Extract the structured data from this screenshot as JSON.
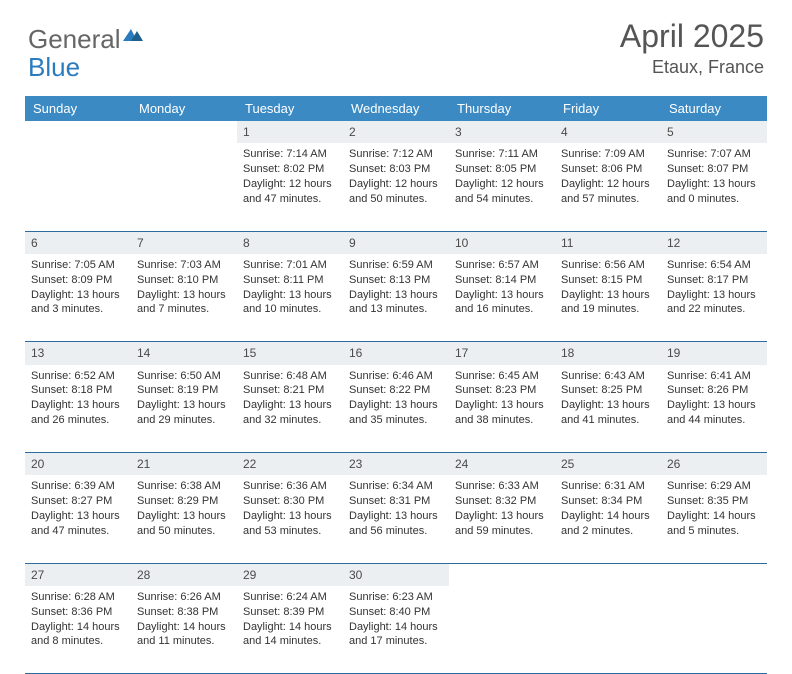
{
  "logo": {
    "general": "General",
    "blue": "Blue"
  },
  "title": "April 2025",
  "location": "Etaux, France",
  "header_bg": "#3b8ac4",
  "daynum_bg": "#eceff1",
  "border_color": "#2e6a9e",
  "days": [
    "Sunday",
    "Monday",
    "Tuesday",
    "Wednesday",
    "Thursday",
    "Friday",
    "Saturday"
  ],
  "weeks": [
    {
      "nums": [
        "",
        "",
        "1",
        "2",
        "3",
        "4",
        "5"
      ],
      "cells": [
        null,
        null,
        {
          "sr": "Sunrise: 7:14 AM",
          "ss": "Sunset: 8:02 PM",
          "dl": "Daylight: 12 hours and 47 minutes."
        },
        {
          "sr": "Sunrise: 7:12 AM",
          "ss": "Sunset: 8:03 PM",
          "dl": "Daylight: 12 hours and 50 minutes."
        },
        {
          "sr": "Sunrise: 7:11 AM",
          "ss": "Sunset: 8:05 PM",
          "dl": "Daylight: 12 hours and 54 minutes."
        },
        {
          "sr": "Sunrise: 7:09 AM",
          "ss": "Sunset: 8:06 PM",
          "dl": "Daylight: 12 hours and 57 minutes."
        },
        {
          "sr": "Sunrise: 7:07 AM",
          "ss": "Sunset: 8:07 PM",
          "dl": "Daylight: 13 hours and 0 minutes."
        }
      ]
    },
    {
      "nums": [
        "6",
        "7",
        "8",
        "9",
        "10",
        "11",
        "12"
      ],
      "cells": [
        {
          "sr": "Sunrise: 7:05 AM",
          "ss": "Sunset: 8:09 PM",
          "dl": "Daylight: 13 hours and 3 minutes."
        },
        {
          "sr": "Sunrise: 7:03 AM",
          "ss": "Sunset: 8:10 PM",
          "dl": "Daylight: 13 hours and 7 minutes."
        },
        {
          "sr": "Sunrise: 7:01 AM",
          "ss": "Sunset: 8:11 PM",
          "dl": "Daylight: 13 hours and 10 minutes."
        },
        {
          "sr": "Sunrise: 6:59 AM",
          "ss": "Sunset: 8:13 PM",
          "dl": "Daylight: 13 hours and 13 minutes."
        },
        {
          "sr": "Sunrise: 6:57 AM",
          "ss": "Sunset: 8:14 PM",
          "dl": "Daylight: 13 hours and 16 minutes."
        },
        {
          "sr": "Sunrise: 6:56 AM",
          "ss": "Sunset: 8:15 PM",
          "dl": "Daylight: 13 hours and 19 minutes."
        },
        {
          "sr": "Sunrise: 6:54 AM",
          "ss": "Sunset: 8:17 PM",
          "dl": "Daylight: 13 hours and 22 minutes."
        }
      ]
    },
    {
      "nums": [
        "13",
        "14",
        "15",
        "16",
        "17",
        "18",
        "19"
      ],
      "cells": [
        {
          "sr": "Sunrise: 6:52 AM",
          "ss": "Sunset: 8:18 PM",
          "dl": "Daylight: 13 hours and 26 minutes."
        },
        {
          "sr": "Sunrise: 6:50 AM",
          "ss": "Sunset: 8:19 PM",
          "dl": "Daylight: 13 hours and 29 minutes."
        },
        {
          "sr": "Sunrise: 6:48 AM",
          "ss": "Sunset: 8:21 PM",
          "dl": "Daylight: 13 hours and 32 minutes."
        },
        {
          "sr": "Sunrise: 6:46 AM",
          "ss": "Sunset: 8:22 PM",
          "dl": "Daylight: 13 hours and 35 minutes."
        },
        {
          "sr": "Sunrise: 6:45 AM",
          "ss": "Sunset: 8:23 PM",
          "dl": "Daylight: 13 hours and 38 minutes."
        },
        {
          "sr": "Sunrise: 6:43 AM",
          "ss": "Sunset: 8:25 PM",
          "dl": "Daylight: 13 hours and 41 minutes."
        },
        {
          "sr": "Sunrise: 6:41 AM",
          "ss": "Sunset: 8:26 PM",
          "dl": "Daylight: 13 hours and 44 minutes."
        }
      ]
    },
    {
      "nums": [
        "20",
        "21",
        "22",
        "23",
        "24",
        "25",
        "26"
      ],
      "cells": [
        {
          "sr": "Sunrise: 6:39 AM",
          "ss": "Sunset: 8:27 PM",
          "dl": "Daylight: 13 hours and 47 minutes."
        },
        {
          "sr": "Sunrise: 6:38 AM",
          "ss": "Sunset: 8:29 PM",
          "dl": "Daylight: 13 hours and 50 minutes."
        },
        {
          "sr": "Sunrise: 6:36 AM",
          "ss": "Sunset: 8:30 PM",
          "dl": "Daylight: 13 hours and 53 minutes."
        },
        {
          "sr": "Sunrise: 6:34 AM",
          "ss": "Sunset: 8:31 PM",
          "dl": "Daylight: 13 hours and 56 minutes."
        },
        {
          "sr": "Sunrise: 6:33 AM",
          "ss": "Sunset: 8:32 PM",
          "dl": "Daylight: 13 hours and 59 minutes."
        },
        {
          "sr": "Sunrise: 6:31 AM",
          "ss": "Sunset: 8:34 PM",
          "dl": "Daylight: 14 hours and 2 minutes."
        },
        {
          "sr": "Sunrise: 6:29 AM",
          "ss": "Sunset: 8:35 PM",
          "dl": "Daylight: 14 hours and 5 minutes."
        }
      ]
    },
    {
      "nums": [
        "27",
        "28",
        "29",
        "30",
        "",
        "",
        ""
      ],
      "cells": [
        {
          "sr": "Sunrise: 6:28 AM",
          "ss": "Sunset: 8:36 PM",
          "dl": "Daylight: 14 hours and 8 minutes."
        },
        {
          "sr": "Sunrise: 6:26 AM",
          "ss": "Sunset: 8:38 PM",
          "dl": "Daylight: 14 hours and 11 minutes."
        },
        {
          "sr": "Sunrise: 6:24 AM",
          "ss": "Sunset: 8:39 PM",
          "dl": "Daylight: 14 hours and 14 minutes."
        },
        {
          "sr": "Sunrise: 6:23 AM",
          "ss": "Sunset: 8:40 PM",
          "dl": "Daylight: 14 hours and 17 minutes."
        },
        null,
        null,
        null
      ]
    }
  ]
}
